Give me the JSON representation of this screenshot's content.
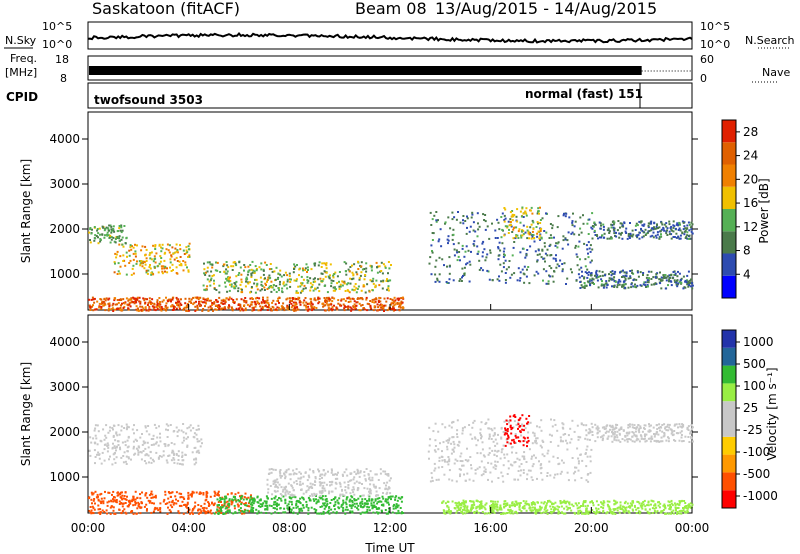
{
  "header": {
    "station": "Saskatoon (fitACF)",
    "beam": "Beam 08",
    "dates": "13/Aug/2015 - 14/Aug/2015"
  },
  "noise_panel": {
    "left_label": "N.Sky",
    "right_label": "N.Search",
    "left_ticks": [
      "10^5",
      "10^0"
    ],
    "right_ticks": [
      "10^5",
      "10^0"
    ]
  },
  "freq_panel": {
    "left_label_1": "Freq.",
    "left_label_2": "[MHz]",
    "left_ticks": [
      "18",
      "8"
    ],
    "right_ticks": [
      "60",
      "0"
    ],
    "right_label": "Nave"
  },
  "cpid_panel": {
    "label": "CPID",
    "programs": [
      "twofsound 3503",
      "normal (fast) 151"
    ]
  },
  "x_axis": {
    "label": "Time UT",
    "ticks": [
      "00:00",
      "04:00",
      "08:00",
      "12:00",
      "16:00",
      "20:00",
      "00:00"
    ]
  },
  "colors": {
    "power_scale": [
      "#0000ff",
      "#2d4bb0",
      "#4a7a4a",
      "#55b055",
      "#f0c000",
      "#f08000",
      "#e06000",
      "#e02000"
    ],
    "velocity_scale": [
      "#ff0000",
      "#ff5000",
      "#ff9900",
      "#ffcc00",
      "#c8c8c8",
      "#c8c8c8",
      "#99ee44",
      "#33bb33",
      "#226699",
      "#2233aa"
    ]
  },
  "chart_data": [
    {
      "type": "heatmap",
      "title": "",
      "xlabel": "Time UT",
      "ylabel": "Slant Range [km]",
      "xlim": [
        "00:00",
        "24:00"
      ],
      "ylim": [
        200,
        4600
      ],
      "y_ticks": [
        1000,
        2000,
        3000,
        4000
      ],
      "colorbar": {
        "label": "Power [dB]",
        "ticks": [
          4,
          8,
          12,
          16,
          20,
          24,
          28
        ],
        "range": [
          0,
          30
        ]
      },
      "echo_regions": [
        {
          "t": [
            0.0,
            1.5
          ],
          "r": [
            1700,
            2100
          ],
          "level": "8-16"
        },
        {
          "t": [
            1.0,
            4.0
          ],
          "r": [
            1000,
            1700
          ],
          "level": "12-24"
        },
        {
          "t": [
            0.0,
            12.5
          ],
          "r": [
            200,
            500
          ],
          "level": "20-30"
        },
        {
          "t": [
            4.5,
            12.0
          ],
          "r": [
            600,
            1300
          ],
          "level": "8-20"
        },
        {
          "t": [
            13.5,
            20.0
          ],
          "r": [
            800,
            2400
          ],
          "level": "4-12"
        },
        {
          "t": [
            16.5,
            18.0
          ],
          "r": [
            1800,
            2500
          ],
          "level": "12-20"
        },
        {
          "t": [
            20.0,
            24.0
          ],
          "r": [
            1800,
            2200
          ],
          "level": "4-12"
        },
        {
          "t": [
            19.5,
            24.0
          ],
          "r": [
            700,
            1100
          ],
          "level": "4-12"
        }
      ]
    },
    {
      "type": "heatmap",
      "title": "",
      "xlabel": "Time UT",
      "ylabel": "Slant Range [km]",
      "xlim": [
        "00:00",
        "24:00"
      ],
      "ylim": [
        200,
        4600
      ],
      "y_ticks": [
        1000,
        2000,
        3000,
        4000
      ],
      "colorbar": {
        "label": "Velocity [m s⁻¹]",
        "ticks": [
          1000,
          500,
          100,
          25,
          -25,
          -100,
          -500,
          -1000
        ],
        "range": [
          -1000,
          1000
        ]
      },
      "echo_regions": [
        {
          "t": [
            0.0,
            4.5
          ],
          "r": [
            1300,
            2200
          ],
          "v": [
            -25,
            25
          ]
        },
        {
          "t": [
            0.0,
            6.5
          ],
          "r": [
            200,
            700
          ],
          "v": [
            -100,
            -500
          ]
        },
        {
          "t": [
            5.0,
            12.5
          ],
          "r": [
            200,
            600
          ],
          "v": [
            100,
            500
          ]
        },
        {
          "t": [
            7.0,
            12.0
          ],
          "r": [
            600,
            1200
          ],
          "v": [
            -25,
            25
          ]
        },
        {
          "t": [
            13.5,
            20.0
          ],
          "r": [
            900,
            2300
          ],
          "v": [
            -25,
            25
          ]
        },
        {
          "t": [
            16.5,
            17.5
          ],
          "r": [
            1700,
            2400
          ],
          "v": [
            -500,
            -1000
          ]
        },
        {
          "t": [
            14.0,
            24.0
          ],
          "r": [
            200,
            500
          ],
          "v": [
            25,
            100
          ]
        },
        {
          "t": [
            20.0,
            24.0
          ],
          "r": [
            1800,
            2200
          ],
          "v": [
            -25,
            25
          ]
        }
      ]
    }
  ]
}
